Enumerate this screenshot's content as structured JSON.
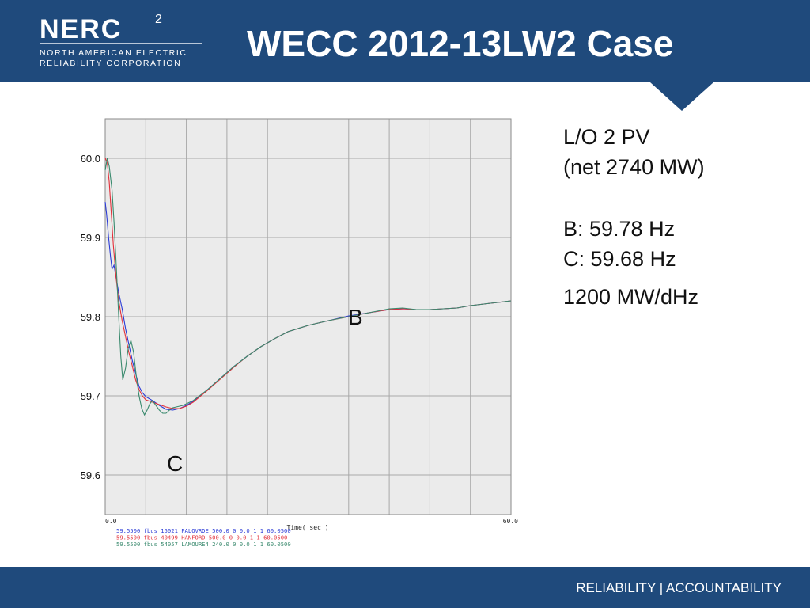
{
  "header": {
    "logo_word": "NERC",
    "logo_line1": "NORTH AMERICAN ELECTRIC",
    "logo_line2": "RELIABILITY CORPORATION",
    "page_number": "2",
    "title": "WECC 2012-13LW2 Case"
  },
  "notes": {
    "line1": "L/O 2 PV",
    "line2": "(net 2740 MW)",
    "line3": "B: 59.78 Hz",
    "line4": "C: 59.68 Hz",
    "line5": "1200 MW/dHz"
  },
  "footer": {
    "text": "RELIABILITY | ACCOUNTABILITY"
  },
  "chart_data": {
    "type": "line",
    "xlabel": "Time( sec )",
    "ylabel": "",
    "xlim": [
      0,
      60
    ],
    "ylim": [
      59.55,
      60.05
    ],
    "x_tick_labels": [
      "0.0",
      "60.0"
    ],
    "y_ticks": [
      60.0,
      59.9,
      59.8,
      59.7,
      59.6
    ],
    "y_tick_labels": [
      "60.0",
      "59.9",
      "59.8",
      "59.7",
      "59.6"
    ],
    "grid": true,
    "grid_columns": 10,
    "annotations": [
      {
        "text": "B",
        "x": 37,
        "y": 59.79
      },
      {
        "text": "C",
        "x": 10.3,
        "y": 59.605
      }
    ],
    "legend": [
      {
        "text": "59.5500 fbus        15021     PALOVRDE 500.0     0              0.0   1    1    60.0500",
        "color": "#2b3bd6"
      },
      {
        "text": "59.5500 fbus        40499      HANFORD 500.0     0              0.0   1    1    60.0500",
        "color": "#e2303a"
      },
      {
        "text": "59.5500 fbus        54057     LAMOURE4 240.0     0              0.0   1    1    60.0500",
        "color": "#3a8a6e"
      }
    ],
    "series": [
      {
        "color": "#2b3bd6",
        "x": [
          0,
          0.2,
          0.5,
          0.8,
          1.0,
          1.3,
          1.6,
          2.0,
          2.5,
          3.0,
          3.5,
          4.0,
          4.5,
          5.0,
          5.5,
          6.0,
          7.0,
          8.0,
          9.0,
          10.0,
          11.0,
          12.0,
          13.0,
          15.0,
          17.0,
          19.0,
          21.0,
          23.0,
          25.0,
          27.0,
          30.0,
          33.0,
          36.0,
          39.0,
          42.0,
          44.0,
          46.0,
          48.0,
          50.0,
          52.0,
          54.0,
          56.0,
          58.0,
          60.0
        ],
        "y": [
          59.945,
          59.93,
          59.9,
          59.875,
          59.86,
          59.865,
          59.85,
          59.83,
          59.81,
          59.785,
          59.765,
          59.745,
          59.728,
          59.712,
          59.704,
          59.699,
          59.694,
          59.688,
          59.683,
          59.682,
          59.684,
          59.688,
          59.693,
          59.707,
          59.722,
          59.737,
          59.75,
          59.762,
          59.772,
          59.781,
          59.789,
          59.795,
          59.801,
          59.805,
          59.809,
          59.81,
          59.809,
          59.809,
          59.81,
          59.811,
          59.814,
          59.816,
          59.818,
          59.82
        ]
      },
      {
        "color": "#e2303a",
        "x": [
          0,
          0.3,
          0.6,
          0.9,
          1.2,
          1.6,
          2.0,
          2.5,
          3.0,
          3.5,
          4.0,
          4.5,
          5.0,
          5.5,
          6.0,
          7.0,
          8.0,
          9.0,
          10.0,
          11.0,
          12.0,
          13.0,
          15.0,
          17.0,
          19.0,
          21.0,
          23.0,
          25.0,
          27.0,
          30.0,
          33.0,
          36.0,
          39.0,
          42.0,
          44.0,
          46.0,
          48.0,
          50.0,
          52.0,
          54.0,
          56.0,
          58.0,
          60.0
        ],
        "y": [
          60.0,
          59.995,
          59.97,
          59.93,
          59.89,
          59.85,
          59.82,
          59.795,
          59.775,
          59.755,
          59.738,
          59.72,
          59.708,
          59.7,
          59.695,
          59.692,
          59.689,
          59.686,
          59.684,
          59.684,
          59.687,
          59.692,
          59.706,
          59.721,
          59.736,
          59.75,
          59.762,
          59.772,
          59.781,
          59.789,
          59.795,
          59.8,
          59.805,
          59.809,
          59.81,
          59.809,
          59.809,
          59.81,
          59.811,
          59.814,
          59.816,
          59.818,
          59.82
        ]
      },
      {
        "color": "#3a8a6e",
        "x": [
          0,
          0.3,
          0.6,
          1.0,
          1.3,
          1.6,
          2.0,
          2.3,
          2.6,
          3.0,
          3.4,
          3.8,
          4.2,
          4.6,
          5.0,
          5.4,
          5.8,
          6.2,
          6.6,
          7.0,
          7.5,
          8.0,
          8.5,
          9.0,
          9.5,
          10.0,
          10.5,
          11.0,
          11.5,
          12.0,
          13.0,
          15.0,
          17.0,
          19.0,
          21.0,
          23.0,
          25.0,
          27.0,
          30.0,
          33.0,
          36.0,
          39.0,
          42.0,
          44.0,
          46.0,
          48.0,
          50.0,
          52.0,
          54.0,
          56.0,
          58.0,
          60.0
        ],
        "y": [
          59.985,
          60.0,
          59.99,
          59.96,
          59.92,
          59.87,
          59.8,
          59.75,
          59.72,
          59.735,
          59.76,
          59.77,
          59.755,
          59.725,
          59.7,
          59.684,
          59.676,
          59.682,
          59.69,
          59.694,
          59.688,
          59.682,
          59.678,
          59.678,
          59.682,
          59.685,
          59.686,
          59.687,
          59.688,
          59.69,
          59.694,
          59.707,
          59.722,
          59.737,
          59.75,
          59.762,
          59.772,
          59.781,
          59.789,
          59.795,
          59.8,
          59.805,
          59.81,
          59.811,
          59.809,
          59.809,
          59.81,
          59.811,
          59.814,
          59.816,
          59.818,
          59.82
        ]
      }
    ]
  }
}
